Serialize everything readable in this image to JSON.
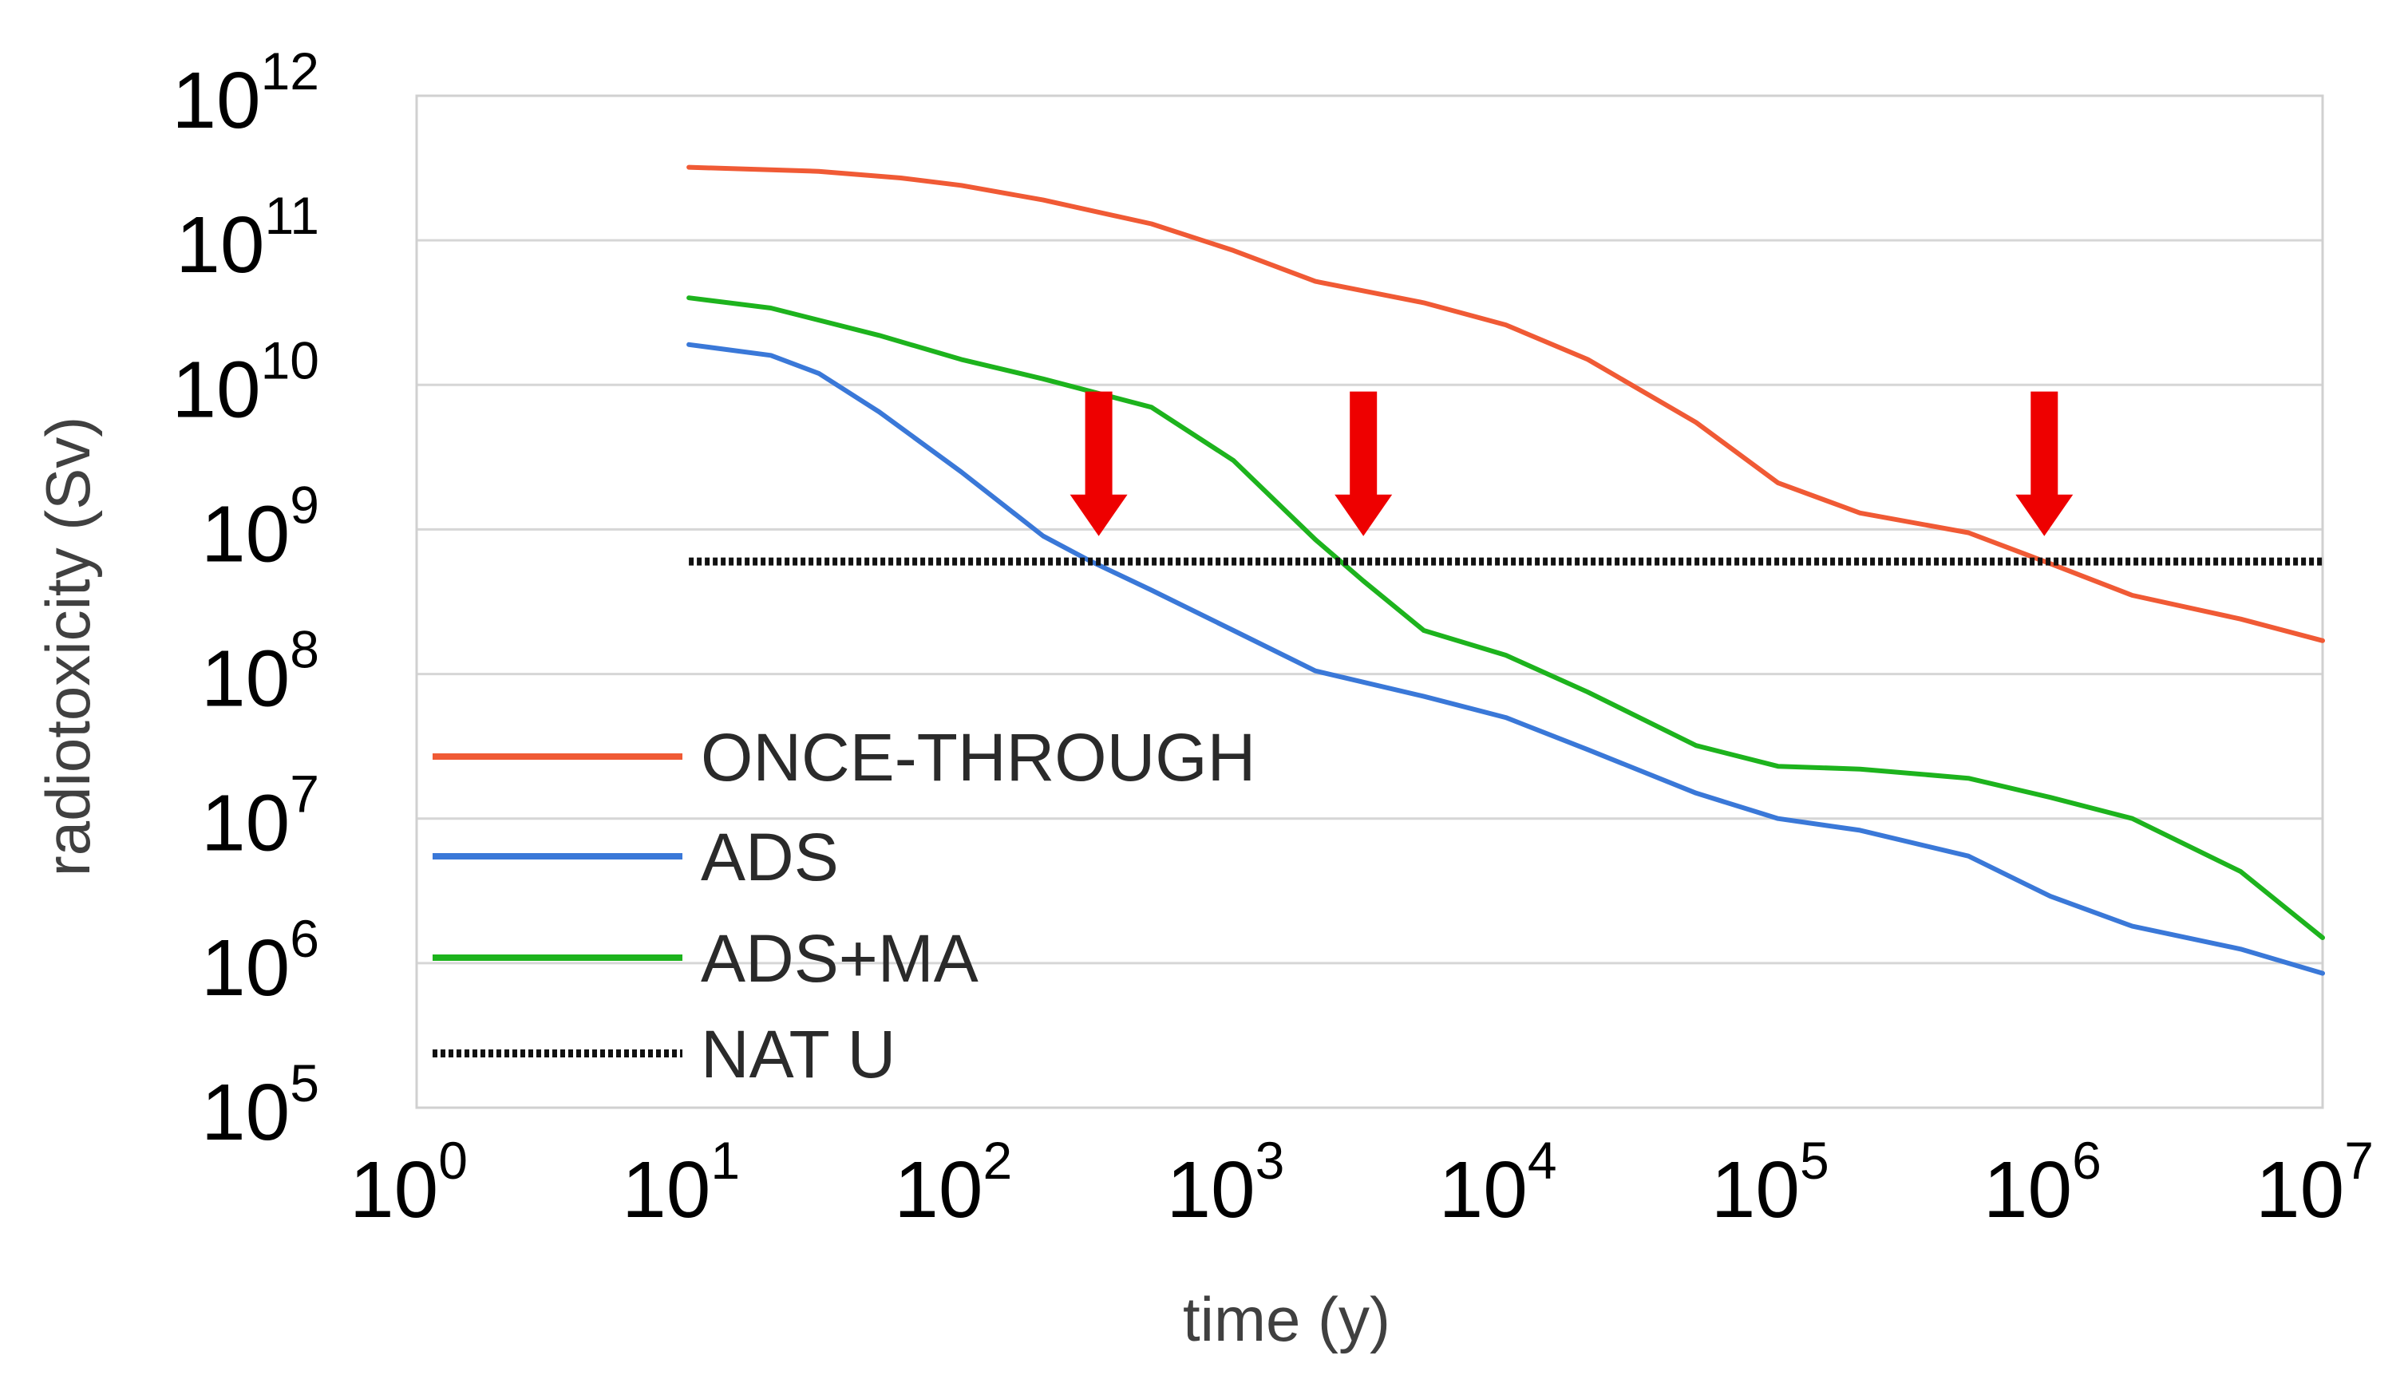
{
  "chart_data": {
    "type": "line",
    "title": "",
    "xlabel": "time (y)",
    "ylabel": "radiotoxicity (Sv)",
    "xscale": "log",
    "yscale": "log",
    "xlim": [
      1,
      10000000
    ],
    "ylim": [
      100000,
      1000000000000
    ],
    "grid": true,
    "legend_position": "bottom-left",
    "x_ticks": [
      {
        "value": 1,
        "base": "10",
        "exp": "0"
      },
      {
        "value": 10,
        "base": "10",
        "exp": "1"
      },
      {
        "value": 100,
        "base": "10",
        "exp": "2"
      },
      {
        "value": 1000,
        "base": "10",
        "exp": "3"
      },
      {
        "value": 10000,
        "base": "10",
        "exp": "4"
      },
      {
        "value": 100000,
        "base": "10",
        "exp": "5"
      },
      {
        "value": 1000000,
        "base": "10",
        "exp": "6"
      },
      {
        "value": 10000000,
        "base": "10",
        "exp": "7"
      }
    ],
    "y_ticks": [
      {
        "value": 1000000000000,
        "base": "10",
        "exp": "12"
      },
      {
        "value": 100000000000,
        "base": "10",
        "exp": "11"
      },
      {
        "value": 10000000000,
        "base": "10",
        "exp": "10"
      },
      {
        "value": 1000000000,
        "base": "10",
        "exp": "9"
      },
      {
        "value": 100000000,
        "base": "10",
        "exp": "8"
      },
      {
        "value": 10000000,
        "base": "10",
        "exp": "7"
      },
      {
        "value": 1000000,
        "base": "10",
        "exp": "6"
      },
      {
        "value": 100000,
        "base": "10",
        "exp": "5"
      }
    ],
    "series": [
      {
        "name": "ONCE-THROUGH",
        "color": "#f05a35",
        "style": "solid",
        "points": [
          [
            10,
            320000000000.0
          ],
          [
            30,
            300000000000.0
          ],
          [
            60,
            270000000000.0
          ],
          [
            100,
            240000000000.0
          ],
          [
            200,
            190000000000.0
          ],
          [
            500,
            130000000000.0
          ],
          [
            1000,
            85000000000.0
          ],
          [
            2000,
            52000000000.0
          ],
          [
            5000,
            37000000000.0
          ],
          [
            10000,
            26000000000.0
          ],
          [
            20000,
            15000000000.0
          ],
          [
            50000,
            5500000000.0
          ],
          [
            100000,
            2100000000.0
          ],
          [
            200000,
            1300000000.0
          ],
          [
            500000,
            950000000.0
          ],
          [
            1000000,
            580000000.0
          ],
          [
            2000000,
            350000000.0
          ],
          [
            5000000,
            240000000.0
          ],
          [
            10000000,
            170000000.0
          ]
        ]
      },
      {
        "name": "ADS",
        "color": "#3a78d8",
        "style": "solid",
        "points": [
          [
            10,
            19000000000.0
          ],
          [
            20,
            16000000000.0
          ],
          [
            30,
            12000000000.0
          ],
          [
            50,
            6500000000.0
          ],
          [
            100,
            2500000000.0
          ],
          [
            200,
            900000000.0
          ],
          [
            300,
            600000000.0
          ],
          [
            500,
            380000000.0
          ],
          [
            1000,
            200000000.0
          ],
          [
            2000,
            105000000.0
          ],
          [
            5000,
            70000000.0
          ],
          [
            10000,
            50000000.0
          ],
          [
            20000,
            30000000.0
          ],
          [
            50000,
            15000000.0
          ],
          [
            100000,
            10000000.0
          ],
          [
            200000,
            8300000.0
          ],
          [
            500000,
            5500000.0
          ],
          [
            1000000,
            2900000.0
          ],
          [
            2000000,
            1800000.0
          ],
          [
            5000000,
            1250000.0
          ],
          [
            10000000,
            850000.0
          ]
        ]
      },
      {
        "name": "ADS+MA",
        "color": "#1db31d",
        "style": "solid",
        "points": [
          [
            10,
            40000000000.0
          ],
          [
            20,
            34000000000.0
          ],
          [
            50,
            22000000000.0
          ],
          [
            100,
            15000000000.0
          ],
          [
            200,
            11000000000.0
          ],
          [
            500,
            7000000000.0
          ],
          [
            1000,
            3000000000.0
          ],
          [
            2000,
            850000000.0
          ],
          [
            3000,
            440000000.0
          ],
          [
            5000,
            200000000.0
          ],
          [
            10000,
            135000000.0
          ],
          [
            20000,
            75000000.0
          ],
          [
            50000,
            32000000.0
          ],
          [
            100000,
            23000000.0
          ],
          [
            200000,
            22000000.0
          ],
          [
            500000,
            19000000.0
          ],
          [
            1000000,
            14000000.0
          ],
          [
            2000000,
            10000000.0
          ],
          [
            5000000,
            4300000.0
          ],
          [
            10000000,
            1500000.0
          ]
        ]
      },
      {
        "name": "NAT U",
        "color": "#111111",
        "style": "dotted",
        "points": [
          [
            10,
            600000000.0
          ],
          [
            10000000,
            600000000.0
          ]
        ]
      }
    ],
    "annotations": [
      {
        "type": "down-arrow",
        "x": 320,
        "y_top": 9000000000.0,
        "y_tip": 900000000.0,
        "color": "#ee0000"
      },
      {
        "type": "down-arrow",
        "x": 3000,
        "y_top": 9000000000.0,
        "y_tip": 900000000.0,
        "color": "#ee0000"
      },
      {
        "type": "down-arrow",
        "x": 950000,
        "y_top": 9000000000.0,
        "y_tip": 900000000.0,
        "color": "#ee0000"
      }
    ]
  }
}
